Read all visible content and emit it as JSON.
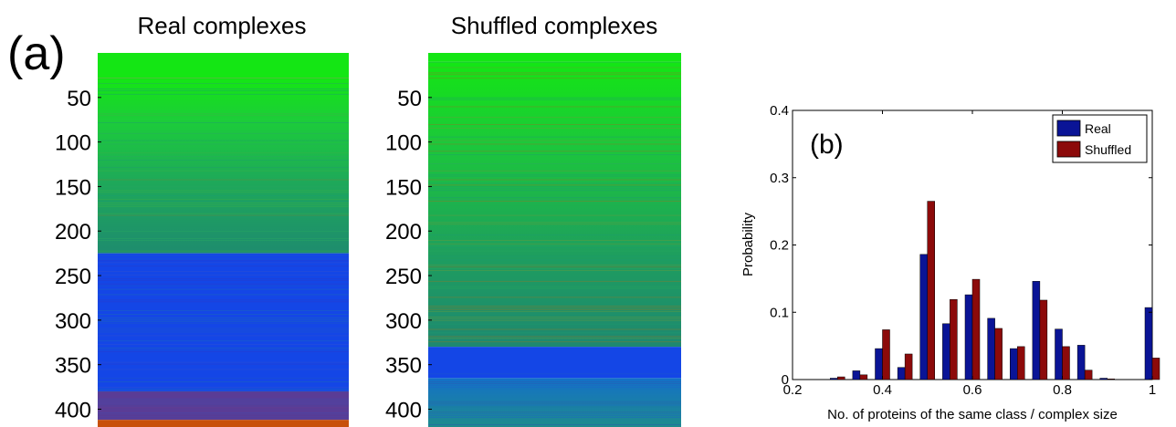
{
  "colors": {
    "real": "#0a1496",
    "shuffled": "#8c0a0a",
    "green": "#14e614",
    "teal": "#1e8c6e",
    "blue": "#1446e6",
    "purple": "#5a3c96",
    "orange": "#c8500a"
  },
  "panel_a": {
    "label": "(a)",
    "yticks": [
      "50",
      "100",
      "150",
      "200",
      "250",
      "300",
      "350",
      "400"
    ],
    "real_title": "Real complexes",
    "shuffled_title": "Shuffled complexes"
  },
  "chart_data": [
    {
      "type": "heatmap",
      "title": "Real complexes",
      "yticks": [
        50,
        100,
        150,
        200,
        250,
        300,
        350,
        400
      ],
      "ylim": [
        0,
        420
      ],
      "bands": [
        {
          "from": 0,
          "to": 28,
          "color": "green"
        },
        {
          "from": 28,
          "to": 225,
          "color": "green-to-teal gradient"
        },
        {
          "from": 225,
          "to": 380,
          "color": "blue"
        },
        {
          "from": 380,
          "to": 412,
          "color": "purple"
        },
        {
          "from": 412,
          "to": 420,
          "color": "orange"
        }
      ]
    },
    {
      "type": "heatmap",
      "title": "Shuffled complexes",
      "yticks": [
        50,
        100,
        150,
        200,
        250,
        300,
        350,
        400
      ],
      "ylim": [
        0,
        420
      ],
      "bands": [
        {
          "from": 0,
          "to": 10,
          "color": "green"
        },
        {
          "from": 10,
          "to": 330,
          "color": "green-to-teal gradient"
        },
        {
          "from": 330,
          "to": 365,
          "color": "blue"
        },
        {
          "from": 365,
          "to": 420,
          "color": "teal-blue"
        }
      ]
    },
    {
      "type": "bar",
      "panel_label": "(b)",
      "xlabel": "No. of proteins of the same class / complex size",
      "ylabel": "Probability",
      "xlim": [
        0.2,
        1.0
      ],
      "ylim": [
        0,
        0.4
      ],
      "xticks": [
        "0.2",
        "0.4",
        "0.6",
        "0.8",
        "1"
      ],
      "yticks": [
        "0",
        "0.1",
        "0.2",
        "0.3",
        "0.4"
      ],
      "x": [
        0.3,
        0.35,
        0.4,
        0.45,
        0.5,
        0.55,
        0.6,
        0.65,
        0.7,
        0.75,
        0.8,
        0.85,
        0.9,
        1.0
      ],
      "series": [
        {
          "name": "Real",
          "values": [
            0.002,
            0.013,
            0.046,
            0.018,
            0.186,
            0.083,
            0.126,
            0.091,
            0.046,
            0.146,
            0.075,
            0.051,
            0.002,
            0.107
          ]
        },
        {
          "name": "Shuffled",
          "values": [
            0.004,
            0.007,
            0.074,
            0.038,
            0.265,
            0.119,
            0.149,
            0.076,
            0.049,
            0.118,
            0.049,
            0.014,
            0.001,
            0.032
          ]
        }
      ],
      "legend": "top-right"
    }
  ]
}
